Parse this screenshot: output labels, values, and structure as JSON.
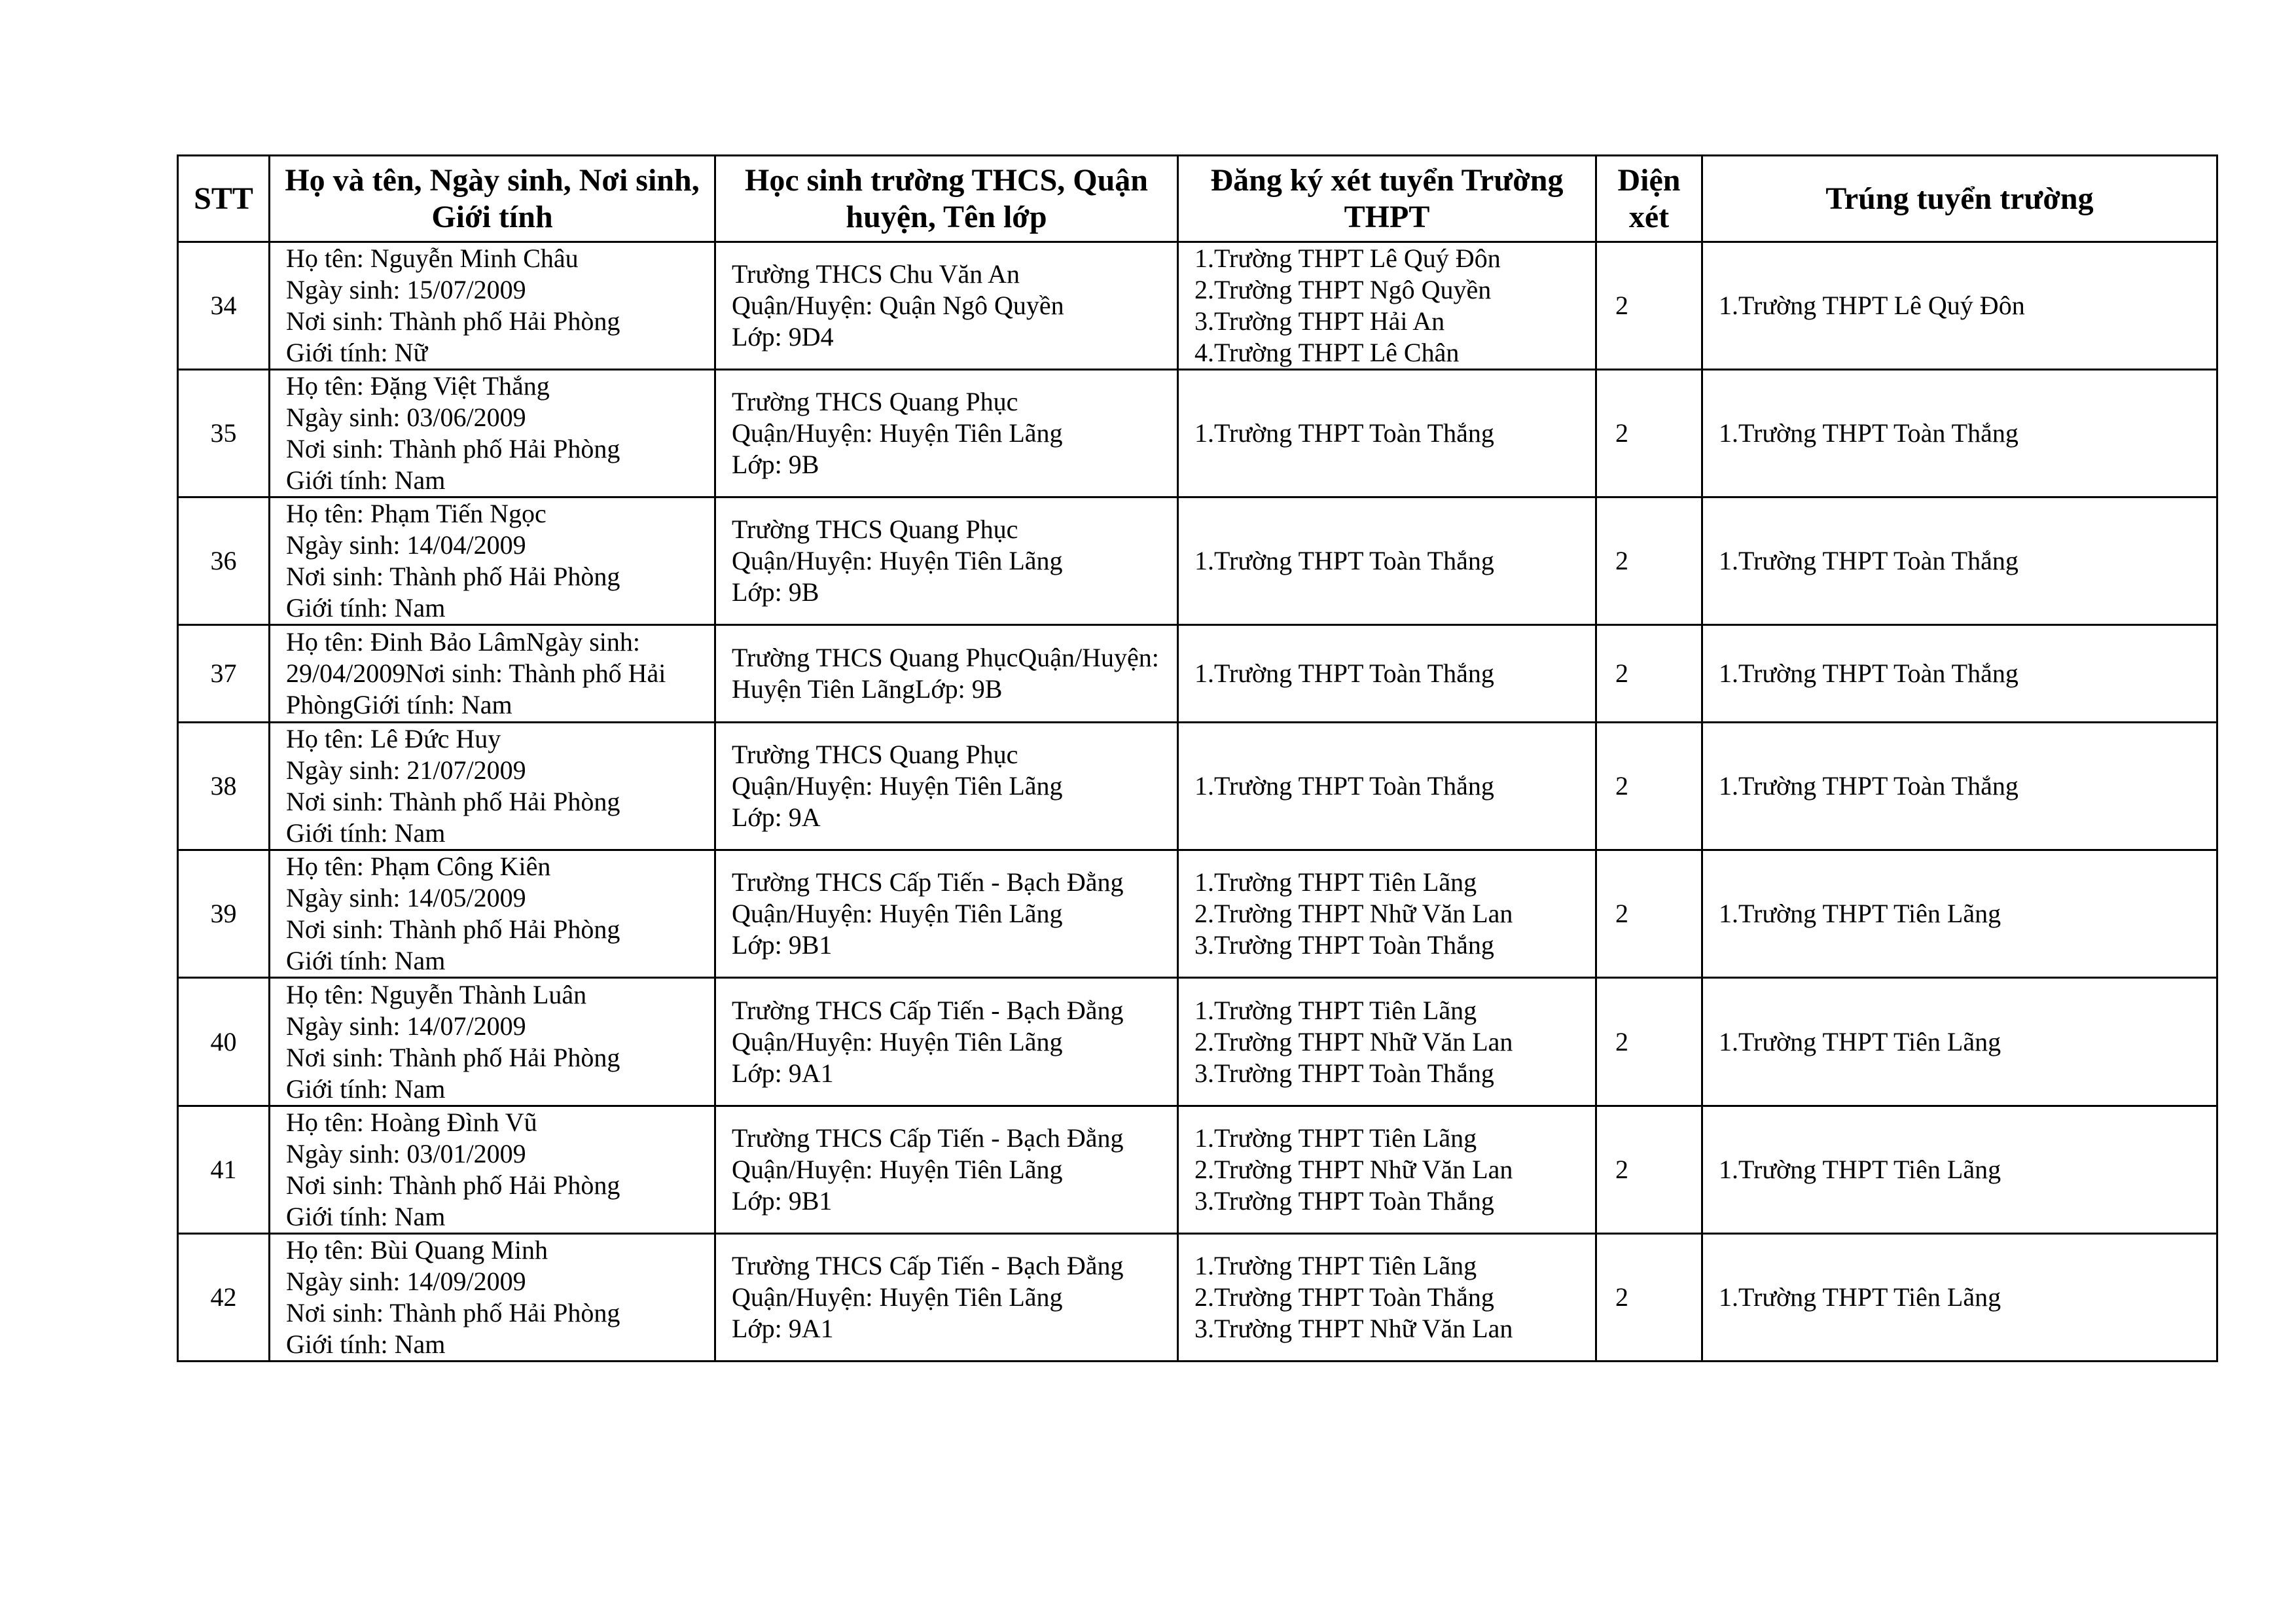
{
  "headers": [
    "STT",
    "Họ và tên, Ngày sinh, Nơi sinh, Giới tính",
    "Học sinh trường THCS, Quận huyện, Tên lớp",
    "Đăng ký xét tuyển Trường THPT",
    "Diện xét",
    "Trúng tuyển trường"
  ],
  "rows": [
    {
      "stt": "34",
      "info": [
        "Họ tên: Nguyễn Minh Châu",
        "Ngày sinh: 15/07/2009",
        "Nơi sinh: Thành phố Hải Phòng",
        "Giới tính: Nữ"
      ],
      "school": [
        "Trường THCS Chu Văn An",
        "Quận/Huyện: Quận Ngô Quyền",
        "Lớp: 9D4"
      ],
      "register": [
        "1.Trường THPT Lê Quý Đôn",
        "2.Trường THPT Ngô Quyền",
        "3.Trường THPT Hải An",
        "4.Trường THPT Lê Chân"
      ],
      "dien": "2",
      "result": [
        "1.Trường THPT Lê Quý Đôn"
      ]
    },
    {
      "stt": "35",
      "info": [
        "Họ tên: Đặng Việt Thắng",
        "Ngày sinh: 03/06/2009",
        "Nơi sinh: Thành phố Hải Phòng",
        "Giới tính: Nam"
      ],
      "school": [
        "Trường THCS Quang Phục",
        "Quận/Huyện: Huyện Tiên Lãng",
        "Lớp: 9B"
      ],
      "register": [
        "1.Trường THPT Toàn Thắng"
      ],
      "dien": "2",
      "result": [
        "1.Trường THPT Toàn Thắng"
      ]
    },
    {
      "stt": "36",
      "info": [
        "Họ tên: Phạm Tiến Ngọc",
        "Ngày sinh: 14/04/2009",
        "Nơi sinh: Thành phố Hải Phòng",
        "Giới tính: Nam"
      ],
      "school": [
        "Trường THCS Quang Phục",
        "Quận/Huyện: Huyện Tiên Lãng",
        "Lớp: 9B"
      ],
      "register": [
        "1.Trường THPT Toàn Thắng"
      ],
      "dien": "2",
      "result": [
        "1.Trường THPT Toàn Thắng"
      ]
    },
    {
      "stt": "37",
      "info": [
        "Họ tên: Đinh Bảo LâmNgày sinh: 29/04/2009Nơi sinh: Thành phố Hải PhòngGiới tính: Nam"
      ],
      "school": [
        "Trường THCS Quang PhụcQuận/Huyện: Huyện Tiên LãngLớp: 9B"
      ],
      "register": [
        "1.Trường THPT Toàn Thắng"
      ],
      "dien": "2",
      "result": [
        "1.Trường THPT Toàn Thắng"
      ],
      "wrapped": true
    },
    {
      "stt": "38",
      "info": [
        "Họ tên: Lê Đức Huy",
        "Ngày sinh: 21/07/2009",
        "Nơi sinh: Thành phố Hải Phòng",
        "Giới tính: Nam"
      ],
      "school": [
        "Trường THCS Quang Phục",
        "Quận/Huyện: Huyện Tiên Lãng",
        "Lớp: 9A"
      ],
      "register": [
        "1.Trường THPT Toàn Thắng"
      ],
      "dien": "2",
      "result": [
        "1.Trường THPT Toàn Thắng"
      ]
    },
    {
      "stt": "39",
      "info": [
        "Họ tên: Phạm Công Kiên",
        "Ngày sinh: 14/05/2009",
        "Nơi sinh: Thành phố Hải Phòng",
        "Giới tính: Nam"
      ],
      "school": [
        "Trường THCS Cấp Tiến - Bạch Đằng",
        "Quận/Huyện: Huyện Tiên Lãng",
        "Lớp: 9B1"
      ],
      "register": [
        "1.Trường THPT Tiên Lãng",
        "2.Trường THPT Nhữ Văn Lan",
        "3.Trường THPT Toàn Thắng"
      ],
      "dien": "2",
      "result": [
        "1.Trường THPT Tiên Lãng"
      ]
    },
    {
      "stt": "40",
      "info": [
        "Họ tên: Nguyễn Thành Luân",
        "Ngày sinh: 14/07/2009",
        "Nơi sinh: Thành phố Hải Phòng",
        "Giới tính: Nam"
      ],
      "school": [
        "Trường THCS Cấp Tiến - Bạch Đằng",
        "Quận/Huyện: Huyện Tiên Lãng",
        "Lớp: 9A1"
      ],
      "register": [
        "1.Trường THPT Tiên Lãng",
        "2.Trường THPT Nhữ Văn Lan",
        "3.Trường THPT Toàn Thắng"
      ],
      "dien": "2",
      "result": [
        "1.Trường THPT Tiên Lãng"
      ]
    },
    {
      "stt": "41",
      "info": [
        "Họ tên: Hoàng Đình Vũ",
        "Ngày sinh: 03/01/2009",
        "Nơi sinh: Thành phố Hải Phòng",
        "Giới tính: Nam"
      ],
      "school": [
        "Trường THCS Cấp Tiến - Bạch Đằng",
        "Quận/Huyện: Huyện Tiên Lãng",
        "Lớp: 9B1"
      ],
      "register": [
        "1.Trường THPT Tiên Lãng",
        "2.Trường THPT Nhữ Văn Lan",
        "3.Trường THPT Toàn Thắng"
      ],
      "dien": "2",
      "result": [
        "1.Trường THPT Tiên Lãng"
      ]
    },
    {
      "stt": "42",
      "info": [
        "Họ tên: Bùi Quang Minh",
        "Ngày sinh: 14/09/2009",
        "Nơi sinh: Thành phố Hải Phòng",
        "Giới tính: Nam"
      ],
      "school": [
        "Trường THCS Cấp Tiến - Bạch Đằng",
        "Quận/Huyện: Huyện Tiên Lãng",
        "Lớp: 9A1"
      ],
      "register": [
        "1.Trường THPT Tiên Lãng",
        "2.Trường THPT Toàn Thắng",
        "3.Trường THPT Nhữ Văn Lan"
      ],
      "dien": "2",
      "result": [
        "1.Trường THPT Tiên Lãng"
      ]
    }
  ]
}
